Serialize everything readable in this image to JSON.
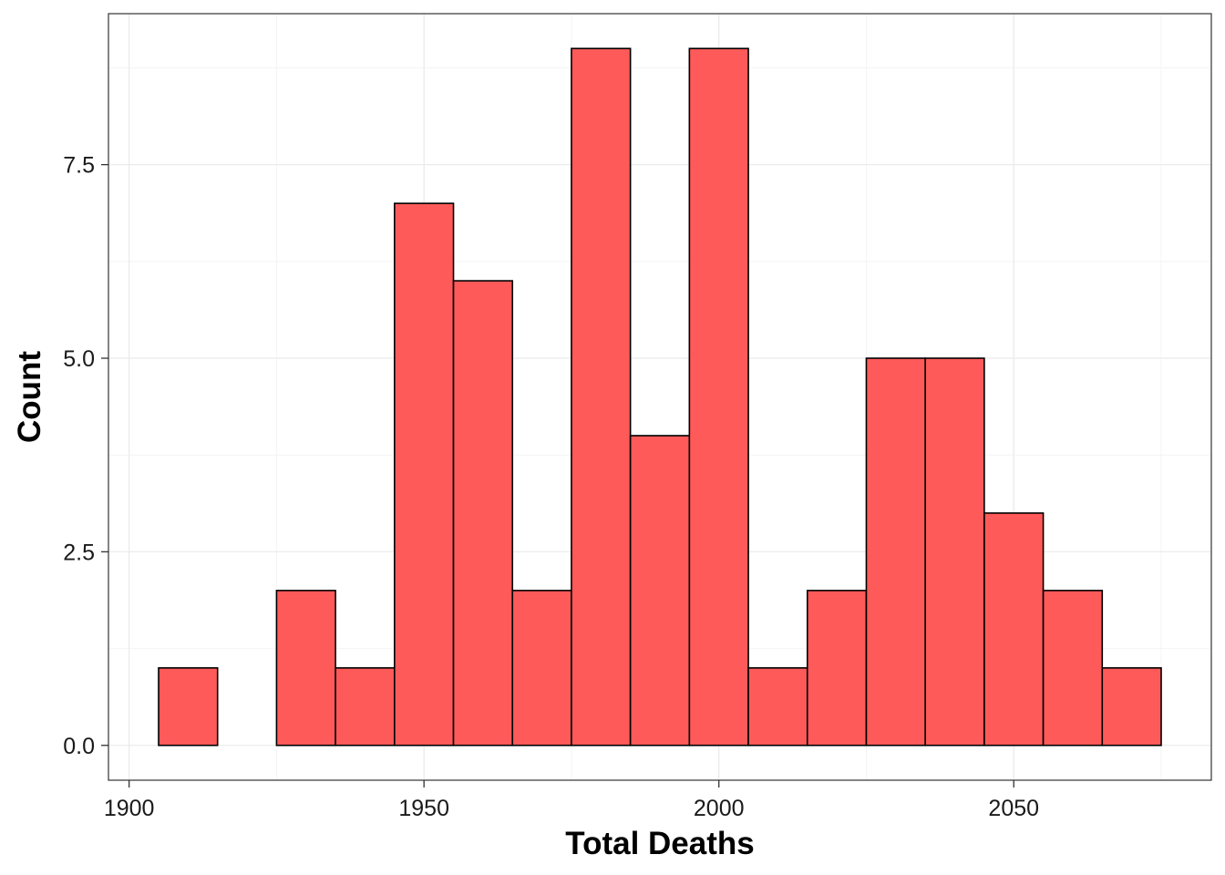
{
  "chart_data": {
    "type": "bar",
    "subtype": "histogram",
    "title": "",
    "xlabel": "Total Deaths",
    "ylabel": "Count",
    "bin_width": 10,
    "bins": [
      {
        "x_start": 1905,
        "x_end": 1915,
        "count": 1
      },
      {
        "x_start": 1915,
        "x_end": 1925,
        "count": 0
      },
      {
        "x_start": 1925,
        "x_end": 1935,
        "count": 2
      },
      {
        "x_start": 1935,
        "x_end": 1945,
        "count": 1
      },
      {
        "x_start": 1945,
        "x_end": 1955,
        "count": 7
      },
      {
        "x_start": 1955,
        "x_end": 1965,
        "count": 6
      },
      {
        "x_start": 1965,
        "x_end": 1975,
        "count": 2
      },
      {
        "x_start": 1975,
        "x_end": 1985,
        "count": 9
      },
      {
        "x_start": 1985,
        "x_end": 1995,
        "count": 4
      },
      {
        "x_start": 1995,
        "x_end": 2005,
        "count": 9
      },
      {
        "x_start": 2005,
        "x_end": 2015,
        "count": 1
      },
      {
        "x_start": 2015,
        "x_end": 2025,
        "count": 2
      },
      {
        "x_start": 2025,
        "x_end": 2035,
        "count": 5
      },
      {
        "x_start": 2035,
        "x_end": 2045,
        "count": 5
      },
      {
        "x_start": 2045,
        "x_end": 2055,
        "count": 3
      },
      {
        "x_start": 2055,
        "x_end": 2065,
        "count": 2
      },
      {
        "x_start": 2065,
        "x_end": 2075,
        "count": 1
      }
    ],
    "xlim": [
      1896.5,
      2083.5
    ],
    "ylim": [
      -0.45,
      9.45
    ],
    "x_ticks": [
      1900,
      1950,
      2000,
      2050
    ],
    "x_tick_labels": [
      "1900",
      "1950",
      "2000",
      "2050"
    ],
    "y_ticks": [
      0,
      2.5,
      5,
      7.5
    ],
    "y_tick_labels": [
      "0.0",
      "2.5",
      "5.0",
      "7.5"
    ],
    "grid": true,
    "legend": "none",
    "colors": {
      "bar_fill": "#ff5a5a",
      "bar_stroke": "#000000",
      "grid_major": "#ebebeb",
      "grid_minor": "#f4f4f4",
      "panel_border": "#333333"
    }
  }
}
